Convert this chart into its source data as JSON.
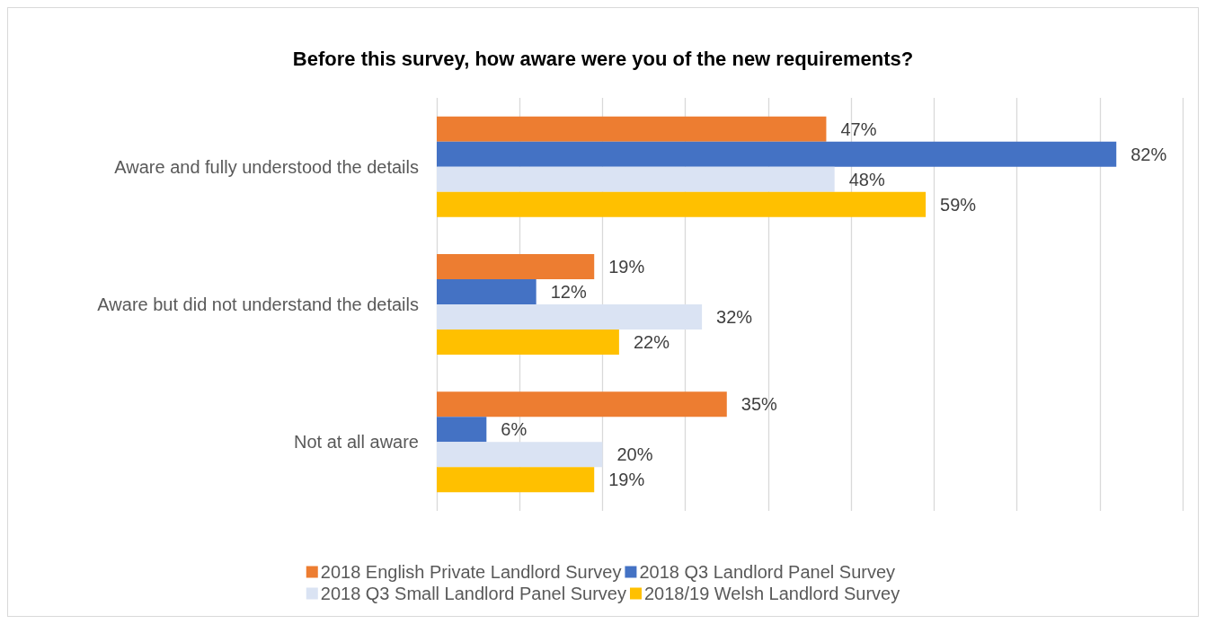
{
  "chart_data": {
    "type": "bar",
    "orientation": "horizontal",
    "title": "Before this survey, how aware were you of the new requirements?",
    "categories": [
      "Aware and fully understood the details",
      "Aware but did not understand the details",
      "Not at all aware"
    ],
    "series": [
      {
        "name": "2018 English Private Landlord Survey",
        "color": "#ed7d31",
        "values": [
          47,
          19,
          35
        ],
        "value_labels": [
          "47%",
          "19%",
          "35%"
        ]
      },
      {
        "name": "2018 Q3 Landlord Panel Survey",
        "color": "#4472c4",
        "values": [
          82,
          12,
          6
        ],
        "value_labels": [
          "82%",
          "12%",
          "6%"
        ]
      },
      {
        "name": "2018 Q3 Small Landlord Panel Survey",
        "color": "#dae3f3",
        "values": [
          48,
          32,
          20
        ],
        "value_labels": [
          "48%",
          "32%",
          "20%"
        ]
      },
      {
        "name": "2018/19 Welsh Landlord Survey",
        "color": "#ffc000",
        "values": [
          59,
          22,
          19
        ],
        "value_labels": [
          "59%",
          "22%",
          "19%"
        ]
      }
    ],
    "xlim": [
      0,
      90
    ],
    "xticks": [
      {
        "value": 0,
        "label": null
      },
      {
        "value": 10,
        "label": null
      },
      {
        "value": 20,
        "label": null
      },
      {
        "value": 30,
        "label": null
      },
      {
        "value": 40,
        "label": null
      },
      {
        "value": 50,
        "label": null
      },
      {
        "value": 60,
        "label": null
      },
      {
        "value": 70,
        "label": null
      },
      {
        "value": 80,
        "label": null
      },
      {
        "value": 90,
        "label": null
      }
    ],
    "tick_labels": "y",
    "grid": "x",
    "legend": "bottom"
  }
}
